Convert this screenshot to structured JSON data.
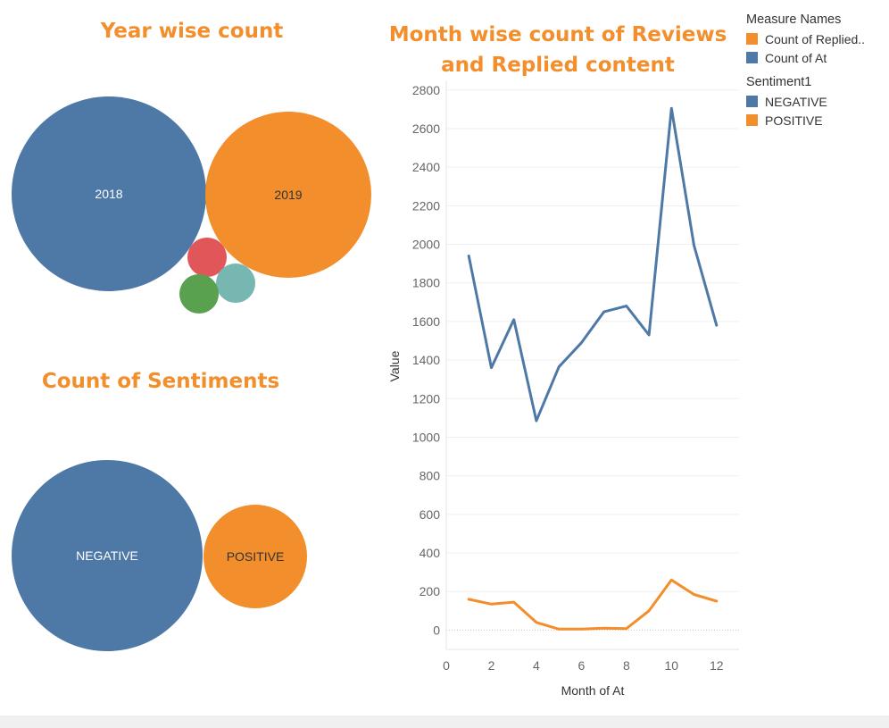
{
  "colors": {
    "blue": "#4e79a7",
    "orange": "#f28e2b",
    "red": "#e15759",
    "teal": "#76b7b2",
    "green": "#59a14f",
    "title": "#f28e2b"
  },
  "year_chart": {
    "title": "Year wise count",
    "bubbles": [
      {
        "label": "2018",
        "color": "#4e79a7"
      },
      {
        "label": "2019",
        "color": "#f28e2b"
      },
      {
        "label": "",
        "color": "#e15759"
      },
      {
        "label": "",
        "color": "#76b7b2"
      },
      {
        "label": "",
        "color": "#59a14f"
      }
    ]
  },
  "sentiment_chart": {
    "title": "Count of Sentiments",
    "bubbles": [
      {
        "label": "NEGATIVE",
        "color": "#4e79a7"
      },
      {
        "label": "POSITIVE",
        "color": "#f28e2b"
      }
    ]
  },
  "legend": {
    "groups": [
      {
        "title": "Measure Names",
        "items": [
          {
            "label": "Count of Replied..",
            "color": "#f28e2b"
          },
          {
            "label": "Count of At",
            "color": "#4e79a7"
          }
        ]
      },
      {
        "title": "Sentiment1",
        "items": [
          {
            "label": "NEGATIVE",
            "color": "#4e79a7"
          },
          {
            "label": "POSITIVE",
            "color": "#f28e2b"
          }
        ]
      }
    ]
  },
  "chart_data": {
    "type": "line",
    "title": "Month wise count of Reviews and Replied content",
    "xlabel": "Month of At",
    "ylabel": "Value",
    "x": [
      1,
      2,
      3,
      4,
      5,
      6,
      7,
      8,
      9,
      10,
      11,
      12
    ],
    "xlim": [
      0,
      13
    ],
    "ylim": [
      -100,
      2850
    ],
    "xticks": [
      0,
      2,
      4,
      6,
      8,
      10,
      12
    ],
    "yticks": [
      0,
      200,
      400,
      600,
      800,
      1000,
      1200,
      1400,
      1600,
      1800,
      2000,
      2200,
      2400,
      2600,
      2800
    ],
    "grid": true,
    "series": [
      {
        "name": "Count of At",
        "color": "#4e79a7",
        "values": [
          1940,
          1360,
          1610,
          1085,
          1365,
          1490,
          1650,
          1680,
          1530,
          2705,
          1995,
          1580
        ]
      },
      {
        "name": "Count of Replied..",
        "color": "#f28e2b",
        "values": [
          160,
          135,
          145,
          40,
          5,
          5,
          10,
          8,
          100,
          260,
          185,
          150
        ]
      }
    ]
  }
}
